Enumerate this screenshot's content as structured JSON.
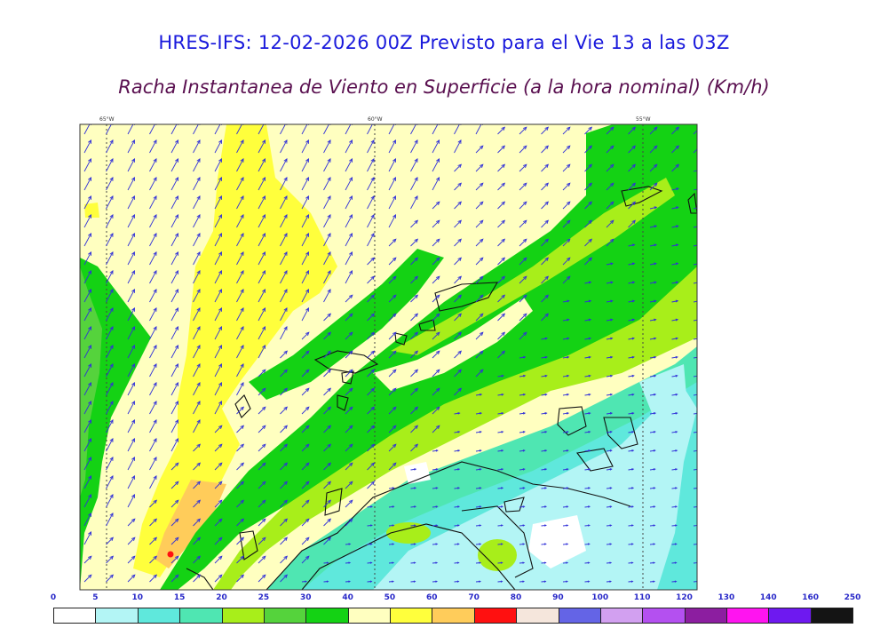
{
  "title": "HRES-IFS: 12-02-2026 00Z Previsto para el Vie 13 a las 03Z",
  "subtitle": "Racha Instantanea de Viento en Superficie (a la hora nominal) (Km/h)",
  "longitudes": [
    "65°W",
    "60°W",
    "55°W"
  ],
  "legend": {
    "ticks": [
      "0",
      "5",
      "10",
      "15",
      "20",
      "25",
      "30",
      "40",
      "50",
      "60",
      "70",
      "80",
      "90",
      "100",
      "110",
      "120",
      "130",
      "140",
      "160",
      "250"
    ],
    "colors": [
      "#ffffff",
      "#b3f5f5",
      "#5fe8dc",
      "#4fe6b2",
      "#a8ee1a",
      "#55d33c",
      "#14d214",
      "#ffffc0",
      "#ffff3c",
      "#ffcc5a",
      "#ff1010",
      "#f5e6dc",
      "#6464e6",
      "#d2a0f0",
      "#b450f0",
      "#8c1ea0",
      "#ff14f0",
      "#6e19f0",
      "#141414"
    ]
  }
}
